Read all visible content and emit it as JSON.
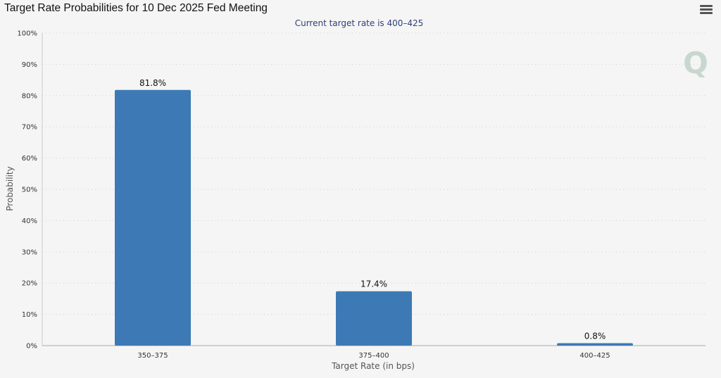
{
  "chart_data": {
    "type": "bar",
    "title": "Target Rate Probabilities for 10 Dec 2025 Fed Meeting",
    "subtitle": "Current target rate is 400–425",
    "xlabel": "Target Rate (in bps)",
    "ylabel": "Probability",
    "categories": [
      "350-375",
      "375-400",
      "400-425"
    ],
    "values": [
      81.8,
      17.4,
      0.8
    ],
    "data_labels": [
      "81.8%",
      "17.4%",
      "0.8%"
    ],
    "ylim": [
      0,
      100
    ],
    "yticks": [
      0,
      10,
      20,
      30,
      40,
      50,
      60,
      70,
      80,
      90,
      100
    ],
    "ytick_labels": [
      "0%",
      "10%",
      "20%",
      "30%",
      "40%",
      "50%",
      "60%",
      "70%",
      "80%",
      "90%",
      "100%"
    ],
    "grid": true,
    "legend": "none",
    "colors": {
      "bar": "#3d7ab5",
      "grid": "#d0d0d0",
      "subtitle": "#2e3f7a",
      "watermark": "#c4d4cc"
    }
  },
  "watermark": {
    "letter": "Q"
  },
  "toolbar": {
    "menu_icon": "hamburger-menu-icon"
  }
}
